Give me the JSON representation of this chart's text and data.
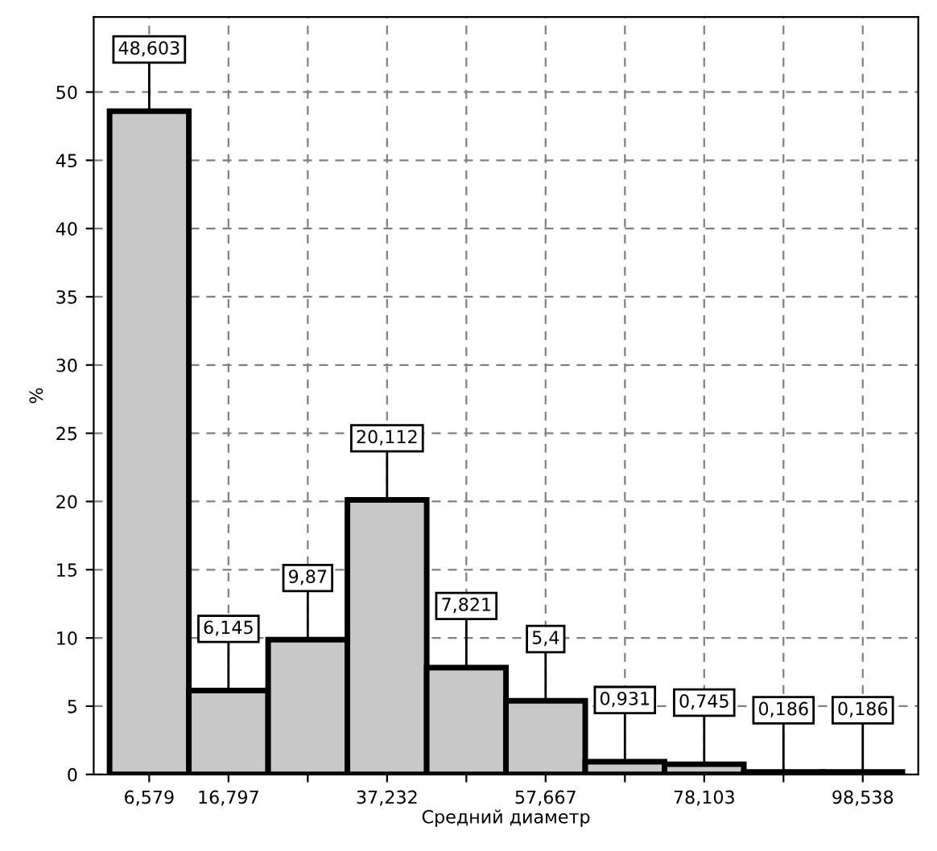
{
  "chart_data": {
    "type": "bar",
    "xlabel": "Средний диаметр",
    "ylabel": "%",
    "categories": [
      "6,579",
      "16,797",
      null,
      "37,232",
      null,
      "57,667",
      null,
      "78,103",
      null,
      "98,538"
    ],
    "values": [
      48.603,
      6.145,
      9.87,
      20.112,
      7.821,
      5.4,
      0.931,
      0.745,
      0.186,
      0.186
    ],
    "value_labels": [
      "48,603",
      "6,145",
      "9,87",
      "20,112",
      "7,821",
      "5,4",
      "0,931",
      "0,745",
      "0,186",
      "0,186"
    ],
    "color": "#c8c8c8",
    "ylim": [
      0,
      55.5
    ],
    "yticks": [
      0,
      5,
      10,
      15,
      20,
      25,
      30,
      35,
      40,
      45,
      50
    ],
    "grid": true
  }
}
